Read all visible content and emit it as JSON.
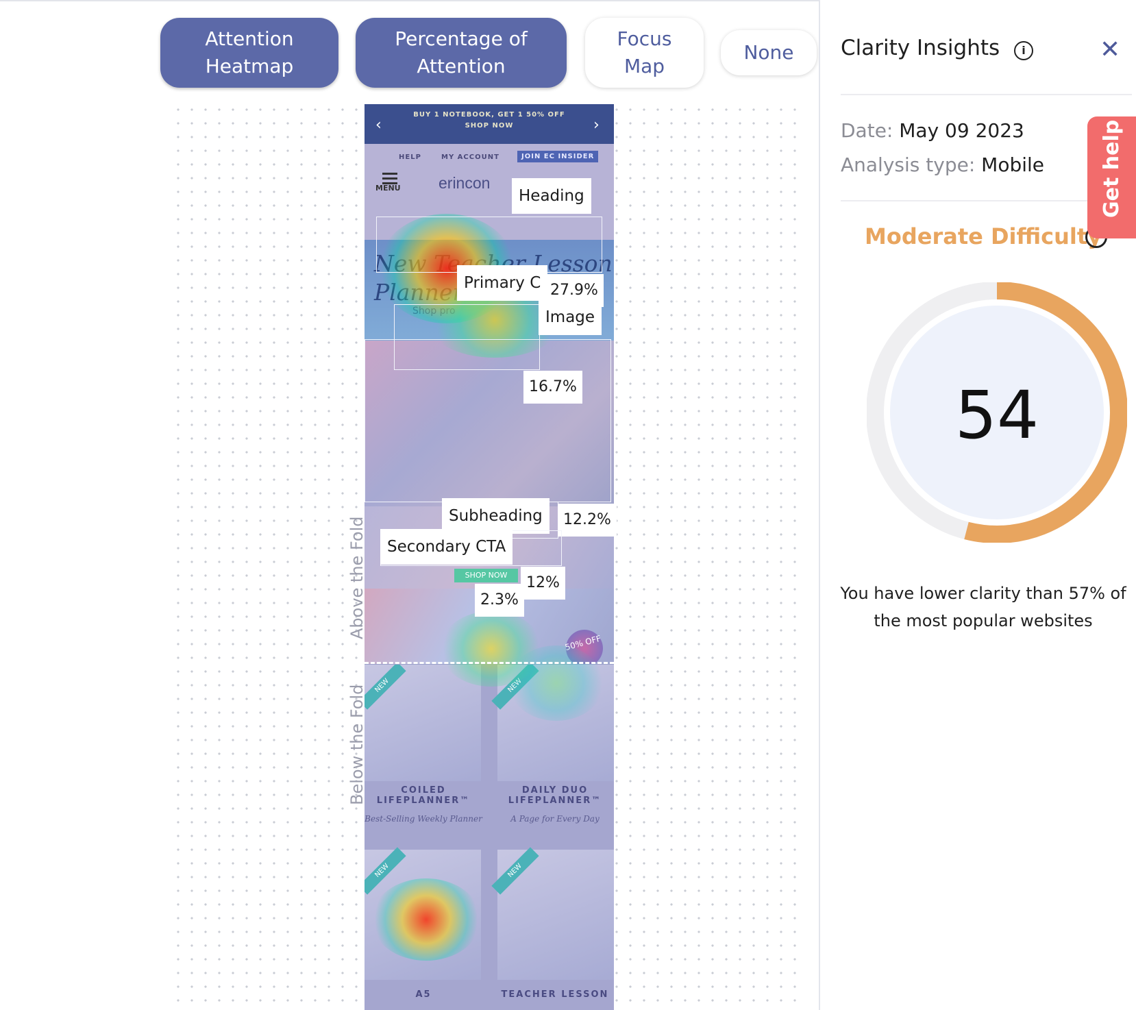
{
  "toolbar": {
    "attention_heatmap": "Attention Heatmap",
    "percentage_of_attention": "Percentage of Attention",
    "focus_map": "Focus Map",
    "none": "None"
  },
  "page_preview": {
    "promo_line1": "BUY 1 NOTEBOOK, GET 1 50% OFF",
    "promo_line2": "SHOP NOW",
    "help": "HELP",
    "account": "MY ACCOUNT",
    "insider": "JOIN EC INSIDER",
    "menu": "MENU",
    "brand": "erincon",
    "hero_line1": "New Teacher Lesson",
    "hero_line2": "Planner Collection",
    "hero_sub": "Shop pro",
    "shop_now": "SHOP NOW",
    "badge_50": "50% OFF",
    "tile1_title": "COILED LIFEPLANNER™",
    "tile1_sub": "Best-Selling Weekly Planner",
    "tile2_title": "DAILY DUO LIFEPLANNER™",
    "tile2_sub": "A Page for Every Day",
    "tile3_title": "A5",
    "tile4_title": "TEACHER LESSON",
    "new_tag": "NEW"
  },
  "annotations": {
    "heading": "Heading",
    "primary_cta": "Primary C",
    "primary_cta_pct": "27.9%",
    "image": "Image",
    "image_pct": "16.7%",
    "subheading": "Subheading",
    "subheading_pct": "12.2%",
    "secondary_cta": "Secondary CTA",
    "secondary_cta_pct": "12%",
    "small_pct": "2.3%",
    "above_fold": "Above the Fold",
    "below_fold": "Below the Fold"
  },
  "panel": {
    "title": "Clarity Insights",
    "date_label": "Date:",
    "date_value": "May 09 2023",
    "analysis_label": "Analysis type:",
    "analysis_value": "Mobile",
    "difficulty": "Moderate Difficulty",
    "score": "54",
    "message": "You have lower clarity than 57% of the most popular websites",
    "get_help": "Get help"
  },
  "colors": {
    "accent": "#5c69a8",
    "difficulty": "#e8a55f",
    "help": "#f26c6c"
  },
  "score_gauge": {
    "value": 54,
    "max": 100
  }
}
